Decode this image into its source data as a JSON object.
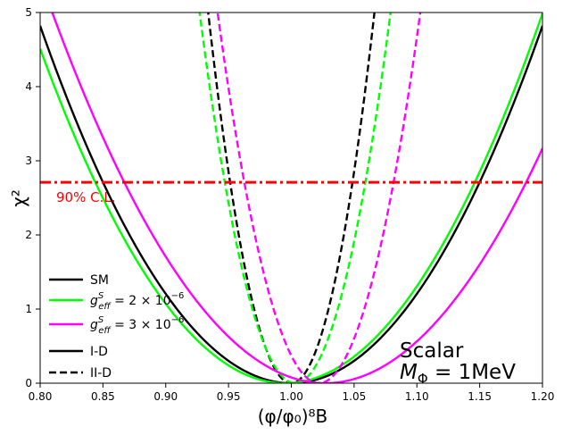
{
  "chart_data": {
    "type": "line",
    "xlabel": "(φ/φ₀)⁸B",
    "ylabel": "χ²",
    "xlim": [
      0.8,
      1.2
    ],
    "ylim": [
      0,
      5
    ],
    "xticks": [
      "0.80",
      "0.85",
      "0.90",
      "0.95",
      "1.00",
      "1.05",
      "1.10",
      "1.15",
      "1.20"
    ],
    "yticks": [
      "0",
      "1",
      "2",
      "3",
      "4",
      "5"
    ],
    "colors": {
      "sm": "#000000",
      "g2": "#00ff00",
      "g3": "#ff00ff",
      "cl": "#ff0000"
    },
    "reference_line": {
      "y": 2.71,
      "label": "90% C.L."
    },
    "series": [
      {
        "name": "SM (I-D)",
        "color": "sm",
        "dashed": false,
        "center": 1.0,
        "width": 0.0911
      },
      {
        "name": "SM (II-D)",
        "color": "sm",
        "dashed": true,
        "center": 1.0,
        "width": 0.0296
      },
      {
        "name": "g_eff^S = 2×10⁻⁶ (I-D)",
        "color": "g2",
        "dashed": false,
        "center": 0.995,
        "width": 0.0918
      },
      {
        "name": "g_eff^S = 2×10⁻⁶ (II-D)",
        "color": "g2",
        "dashed": true,
        "center": 1.003,
        "width": 0.034
      },
      {
        "name": "g_eff^S = 3×10⁻⁶ (I-D)",
        "color": "g3",
        "dashed": false,
        "center": 1.027,
        "width": 0.0972
      },
      {
        "name": "g_eff^S = 3×10⁻⁶ (II-D)",
        "color": "g3",
        "dashed": true,
        "center": 1.022,
        "width": 0.0361
      }
    ],
    "legend": [
      {
        "label": "SM",
        "style": "solid",
        "color": "sm"
      },
      {
        "label_main": "g",
        "label_sup": "S",
        "label_sub": "eff",
        "label_rest": " = 2 × 10",
        "label_exp": "−6",
        "style": "solid",
        "color": "g2"
      },
      {
        "label_main": "g",
        "label_sup": "S",
        "label_sub": "eff",
        "label_rest": " = 3 × 10",
        "label_exp": "−6",
        "style": "solid",
        "color": "g3"
      },
      {
        "label": "I-D",
        "style": "solid",
        "color": "sm"
      },
      {
        "label": "II-D",
        "style": "dashed",
        "color": "sm"
      }
    ],
    "annotation": {
      "line1": "Scalar",
      "line2_main": "M",
      "line2_sub": "Φ",
      "line2_rest": " = 1MeV"
    }
  }
}
